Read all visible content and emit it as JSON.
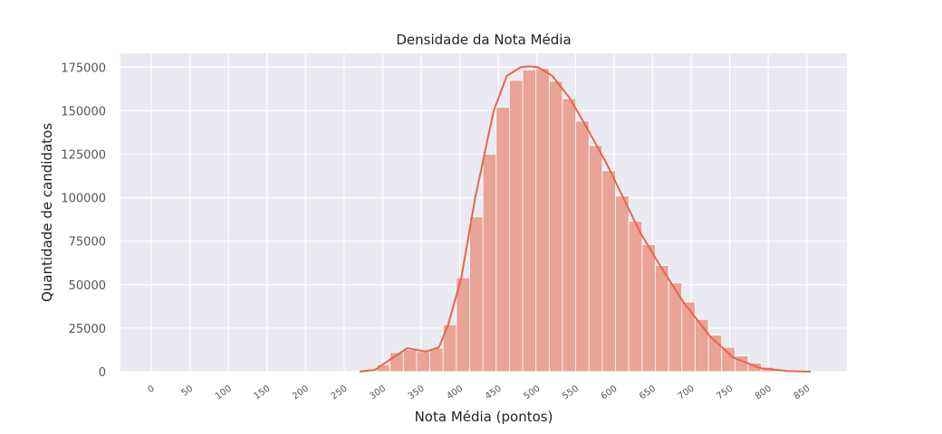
{
  "chart_data": {
    "type": "histogram",
    "title": "Densidade da Nota Média",
    "xlabel": "Nota Média (pontos)",
    "ylabel": "Quantidade de candidatos",
    "bins": [
      0,
      17.2,
      34.4,
      51.6,
      68.8,
      86,
      103.2,
      120.4,
      137.6,
      154.8,
      172,
      189.2,
      206.4,
      223.6,
      240.8,
      258,
      275.2,
      292.4,
      309.6,
      326.8,
      344,
      361.2,
      378.4,
      395.6,
      412.8,
      430,
      447.2,
      464.4,
      481.6,
      498.8,
      516,
      533.2,
      550.4,
      567.6,
      584.8,
      602,
      619.2,
      636.4,
      653.6,
      670.8,
      688,
      705.2,
      722.4,
      739.6,
      756.8,
      774,
      791.2,
      808.4,
      825.6,
      842.8,
      860
    ],
    "values": [
      0,
      0,
      0,
      0,
      0,
      0,
      0,
      0,
      0,
      0,
      0,
      0,
      0,
      0,
      0,
      0,
      0,
      4000,
      11000,
      12500,
      11500,
      13500,
      27000,
      54000,
      89000,
      125000,
      152000,
      167500,
      173500,
      174500,
      167000,
      157000,
      144000,
      130000,
      115500,
      101000,
      86500,
      73000,
      61000,
      51000,
      40000,
      30000,
      21000,
      14000,
      9000,
      5000,
      2500,
      1000,
      400,
      100
    ],
    "color": "#e9a497",
    "kde": {
      "color": "#e8654a",
      "x": [
        270,
        290,
        310,
        332,
        356,
        373,
        385,
        402,
        420,
        444,
        461,
        479,
        490,
        502,
        520,
        543,
        565,
        590,
        612,
        634,
        661,
        690,
        725,
        755,
        790,
        825,
        855
      ],
      "y": [
        0,
        1000,
        7000,
        13500,
        11500,
        14000,
        27000,
        54000,
        100000,
        150000,
        170000,
        175000,
        175500,
        175000,
        170000,
        157000,
        140000,
        120000,
        100000,
        80000,
        60000,
        40000,
        20000,
        8000,
        2000,
        300,
        0
      ]
    },
    "xlim": [
      -40,
      902
    ],
    "ylim": [
      0,
      183000
    ],
    "xticks": [
      0,
      50,
      100,
      150,
      200,
      250,
      300,
      350,
      400,
      450,
      500,
      550,
      600,
      650,
      700,
      750,
      800,
      850
    ],
    "yticks": [
      0,
      25000,
      50000,
      75000,
      100000,
      125000,
      150000,
      175000
    ],
    "grid": true
  }
}
